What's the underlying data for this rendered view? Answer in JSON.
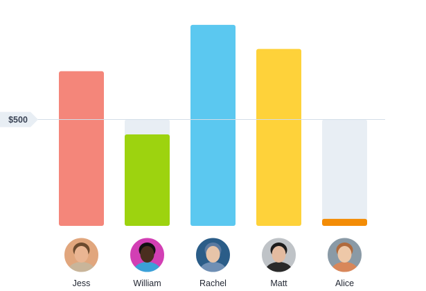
{
  "chart_data": {
    "type": "bar",
    "categories": [
      "Jess",
      "William",
      "Rachel",
      "Matt",
      "Alice"
    ],
    "values": [
      727,
      430,
      945,
      832,
      33
    ],
    "ylim": [
      0,
      1000
    ],
    "target": {
      "value": 500,
      "label": "$500"
    },
    "grid": false,
    "legend": "none",
    "bar_colors": [
      "#f4867a",
      "#9dd30f",
      "#5bc8f0",
      "#fed23a",
      "#f38c06"
    ],
    "track_color": "#e8eef4",
    "target_line_color": "#d3dee8",
    "avatars": [
      {
        "name": "Jess",
        "icon": "person-avatar-icon",
        "bg": "#e1a67d",
        "skin": "#eab592",
        "hair": "#6b4a2e",
        "shirt": "#c9b59a"
      },
      {
        "name": "William",
        "icon": "person-avatar-icon",
        "bg": "#d23fb4",
        "skin": "#4a2e1f",
        "hair": "#111111",
        "shirt": "#3ba0d8"
      },
      {
        "name": "Rachel",
        "icon": "person-avatar-icon",
        "bg": "#2b5d88",
        "skin": "#e7c4a8",
        "hair": "#5b7aa0",
        "shirt": "#6f8fb4"
      },
      {
        "name": "Matt",
        "icon": "person-avatar-icon",
        "bg": "#bfc3c7",
        "skin": "#e3bba0",
        "hair": "#1d1d1d",
        "shirt": "#2a2a2a"
      },
      {
        "name": "Alice",
        "icon": "person-avatar-icon",
        "bg": "#8a9aa6",
        "skin": "#eec8a8",
        "hair": "#b06a3c",
        "shirt": "#d8875a"
      }
    ]
  }
}
